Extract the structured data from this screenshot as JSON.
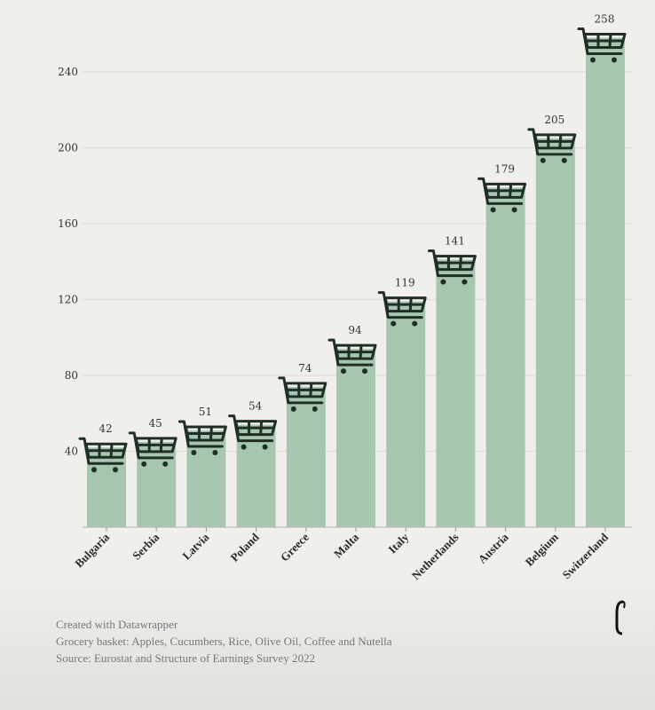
{
  "chart_data": {
    "type": "bar",
    "title": "",
    "xlabel": "",
    "ylabel": "",
    "categories": [
      "Bulgaria",
      "Serbia",
      "Latvia",
      "Poland",
      "Greece",
      "Malta",
      "Italy",
      "Netherlands",
      "Austria",
      "Belgium",
      "Switzerland"
    ],
    "values": [
      42,
      45,
      51,
      54,
      74,
      94,
      119,
      141,
      179,
      205,
      258
    ],
    "data_labels": [
      "42",
      "45",
      "51",
      "54",
      "74",
      "94",
      "119",
      "141",
      "179",
      "205",
      "258"
    ],
    "ylim": [
      0,
      260
    ],
    "yticks": [
      40,
      80,
      120,
      160,
      200,
      240
    ],
    "ytick_labels": [
      "40",
      "80",
      "120",
      "160",
      "200",
      "240"
    ],
    "grid": true,
    "legend": "none",
    "bar_color": "#a7c6b0",
    "marker_icon": "shopping-cart-icon",
    "marker_color": "#1f2f26"
  },
  "footer": {
    "credit": "Created with Datawrapper",
    "note": "Grocery basket: Apples, Cucumbers, Rice, Olive Oil, Coffee and Nutella",
    "source": "Source: Eurostat and Structure of Earnings Survey 2022"
  },
  "logo": {
    "icon": "publisher-logo-icon"
  }
}
